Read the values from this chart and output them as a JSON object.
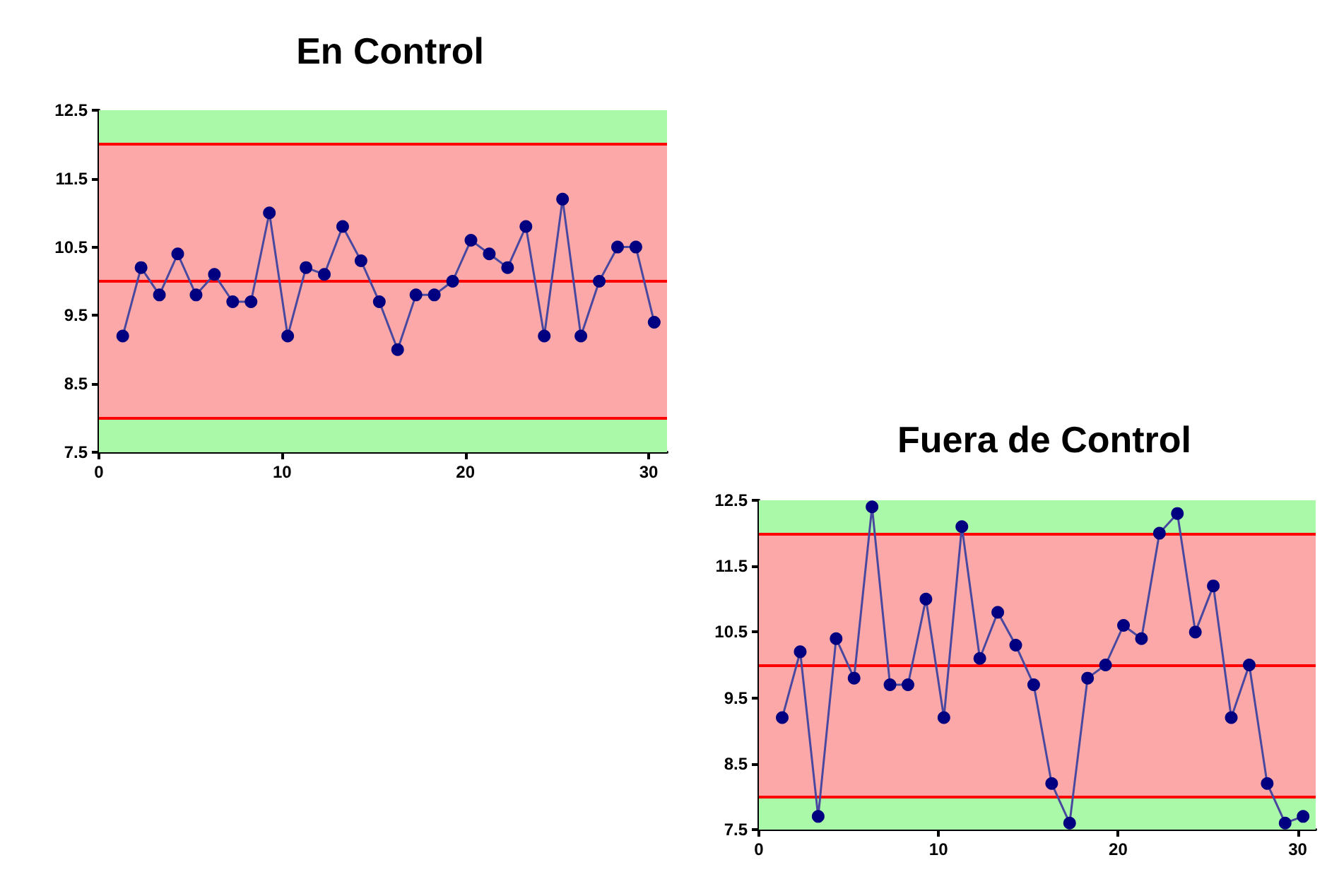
{
  "chart_data": [
    {
      "type": "line",
      "title": "En Control",
      "marker": "circle",
      "line_style": "solid",
      "x": [
        1.3,
        2.3,
        3.3,
        4.3,
        5.3,
        6.3,
        7.3,
        8.3,
        9.3,
        10.3,
        11.3,
        12.3,
        13.3,
        14.3,
        15.3,
        16.3,
        17.3,
        18.3,
        19.3,
        20.3,
        21.3,
        22.3,
        23.3,
        24.3,
        25.3,
        26.3,
        27.3,
        28.3,
        29.3,
        30.3
      ],
      "series": [
        {
          "color": "#000080",
          "values": [
            9.2,
            10.2,
            9.8,
            10.4,
            9.8,
            10.1,
            9.7,
            9.7,
            11.0,
            9.2,
            10.2,
            10.1,
            10.8,
            10.3,
            9.7,
            9.0,
            9.8,
            9.8,
            10.0,
            10.6,
            10.4,
            10.2,
            10.8,
            9.2,
            11.2,
            9.2,
            10.0,
            10.5,
            10.5,
            9.4
          ]
        }
      ],
      "xlim": [
        0,
        31
      ],
      "xticks": [
        0,
        10,
        20,
        30
      ],
      "ylim": [
        7.5,
        12.5
      ],
      "yticks": [
        7.5,
        8.5,
        9.5,
        10.5,
        11.5,
        12.5
      ],
      "bands": [
        {
          "axis": "y",
          "from": 7.5,
          "to": 12.5,
          "color": "#a9f9a9"
        },
        {
          "axis": "y",
          "from": 8,
          "to": 12,
          "color": "#fca8a8"
        }
      ],
      "ref_lines": [
        {
          "axis": "y",
          "value": 8,
          "color": "#ff0000"
        },
        {
          "axis": "y",
          "value": 10,
          "color": "#ff0000"
        },
        {
          "axis": "y",
          "value": 12,
          "color": "#ff0000"
        }
      ]
    },
    {
      "type": "line",
      "title": "Fuera de Control",
      "marker": "circle",
      "line_style": "solid",
      "x": [
        1.3,
        2.3,
        3.3,
        4.3,
        5.3,
        6.3,
        7.3,
        8.3,
        9.3,
        10.3,
        11.3,
        12.3,
        13.3,
        14.3,
        15.3,
        16.3,
        17.3,
        18.3,
        19.3,
        20.3,
        21.3,
        22.3,
        23.3,
        24.3,
        25.3,
        26.3,
        27.3,
        28.3,
        29.3,
        30.3
      ],
      "series": [
        {
          "color": "#000080",
          "values": [
            9.2,
            10.2,
            7.7,
            10.4,
            9.8,
            12.4,
            9.7,
            9.7,
            11.0,
            9.2,
            12.1,
            10.1,
            10.8,
            10.3,
            9.7,
            8.2,
            7.6,
            9.8,
            10.0,
            10.6,
            10.4,
            12.0,
            12.3,
            10.5,
            11.2,
            9.2,
            10.0,
            8.2,
            7.6,
            7.7
          ]
        }
      ],
      "xlim": [
        0,
        31
      ],
      "xticks": [
        0,
        10,
        20,
        30
      ],
      "ylim": [
        7.5,
        12.5
      ],
      "yticks": [
        7.5,
        8.5,
        9.5,
        10.5,
        11.5,
        12.5
      ],
      "bands": [
        {
          "axis": "y",
          "from": 7.5,
          "to": 12.5,
          "color": "#a9f9a9"
        },
        {
          "axis": "y",
          "from": 8,
          "to": 12,
          "color": "#fca8a8"
        }
      ],
      "ref_lines": [
        {
          "axis": "y",
          "value": 8,
          "color": "#ff0000"
        },
        {
          "axis": "y",
          "value": 10,
          "color": "#ff0000"
        },
        {
          "axis": "y",
          "value": 12,
          "color": "#ff0000"
        }
      ]
    }
  ]
}
